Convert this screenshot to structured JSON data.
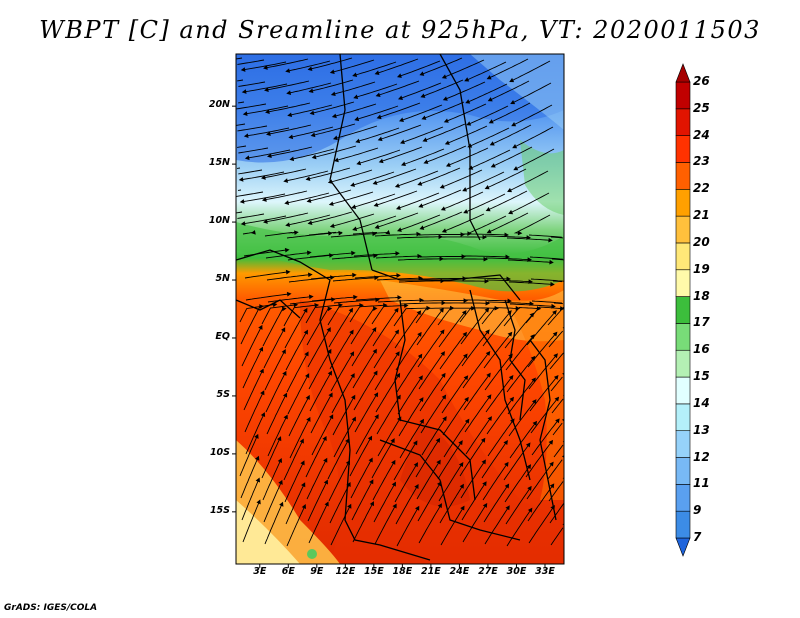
{
  "title": "WBPT [C] and Sreamline at 925hPa, VT: 2020011503",
  "footer": "GrADS: IGES/COLA",
  "map": {
    "lat_labels": [
      "20N",
      "15N",
      "10N",
      "5N",
      "EQ",
      "5S",
      "10S",
      "15S"
    ],
    "lat_values": [
      20,
      15,
      10,
      5,
      0,
      -5,
      -10,
      -15
    ],
    "lon_labels": [
      "3E",
      "6E",
      "9E",
      "12E",
      "15E",
      "18E",
      "21E",
      "24E",
      "27E",
      "30E",
      "33E"
    ],
    "lon_values": [
      3,
      6,
      9,
      12,
      15,
      18,
      21,
      24,
      27,
      30,
      33
    ],
    "lat_range": [
      -19.5,
      24.5
    ],
    "lon_range": [
      0.5,
      35
    ]
  },
  "colorbar": {
    "labels": [
      "7",
      "9",
      "11",
      "12",
      "13",
      "14",
      "15",
      "16",
      "17",
      "18",
      "19",
      "20",
      "21",
      "22",
      "23",
      "24",
      "25",
      "26"
    ],
    "colors": [
      "#1e64dc",
      "#3c8ce6",
      "#5aa0f0",
      "#78b9f5",
      "#96d2fa",
      "#b4f0fa",
      "#e1ffff",
      "#b4f0b4",
      "#78dc78",
      "#3cbe3c",
      "#fffaaa",
      "#ffe878",
      "#ffc03c",
      "#ffa000",
      "#ff6000",
      "#ff3200",
      "#e11400",
      "#c00000",
      "#a50000"
    ]
  }
}
